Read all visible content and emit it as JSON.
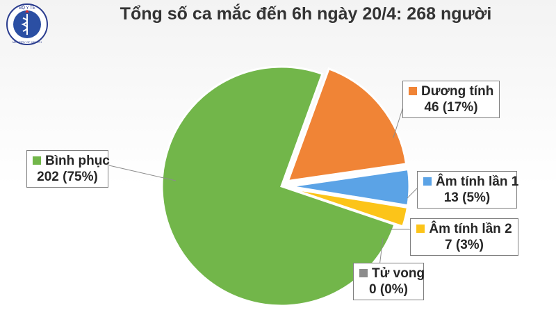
{
  "header": {
    "logo_text": "BỘ Y TẾ",
    "logo_subtext": "MINISTRY OF HEALTH",
    "title": "Tổng số ca mắc đến 6h ngày 20/4: 268 người"
  },
  "chart_data": {
    "type": "pie",
    "title": "Tổng số ca mắc đến 6h ngày 20/4: 268 người",
    "slices": [
      {
        "name": "Dương tính",
        "value": 46,
        "percent": "17%",
        "label": "46 (17%)",
        "color": "#f08436",
        "exploded": true
      },
      {
        "name": "Âm tính lần 1",
        "value": 13,
        "percent": "5%",
        "label": "13 (5%)",
        "color": "#5ba3e6",
        "exploded": true
      },
      {
        "name": "Âm tính lần 2",
        "value": 7,
        "percent": "3%",
        "label": "7 (3%)",
        "color": "#fcc419",
        "exploded": true
      },
      {
        "name": "Tử vong",
        "value": 0,
        "percent": "0%",
        "label": "0 (0%)",
        "color": "#8c8c8c",
        "exploded": true
      },
      {
        "name": "Bình phục",
        "value": 202,
        "percent": "75%",
        "label": "202 (75%)",
        "color": "#72b64a",
        "exploded": false
      }
    ]
  }
}
